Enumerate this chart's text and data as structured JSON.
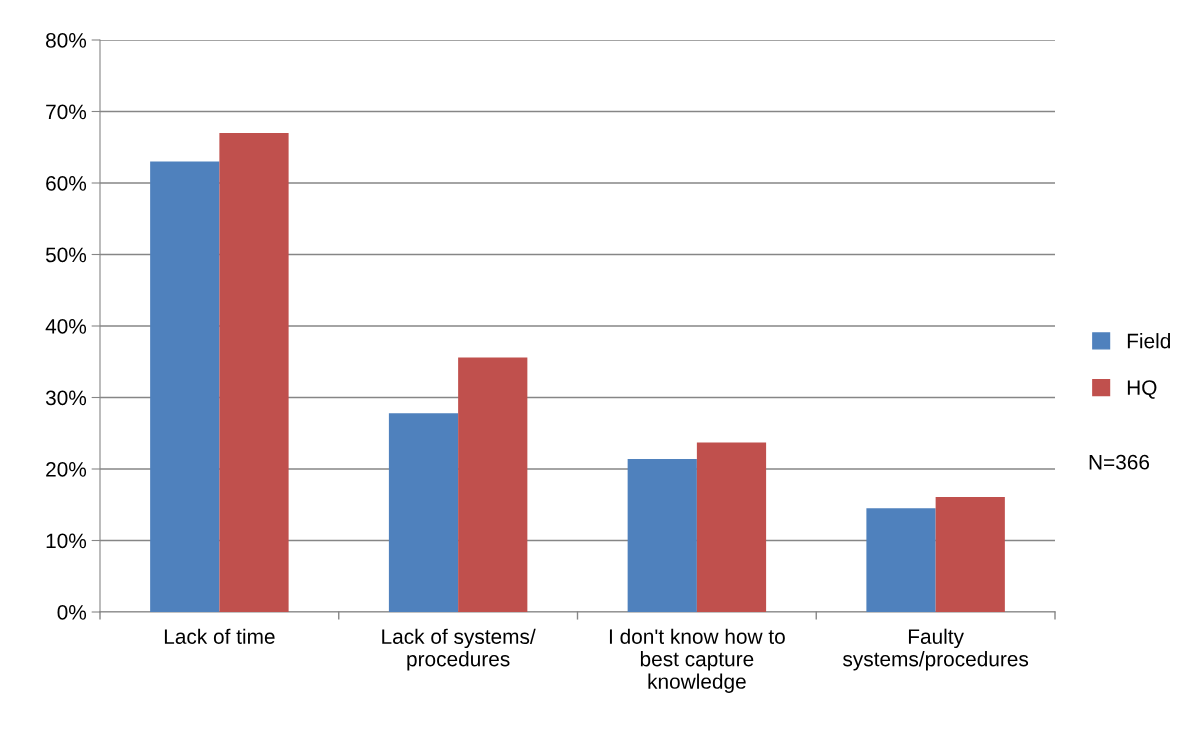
{
  "chart_data": {
    "type": "bar",
    "categories": [
      "Lack of time",
      "Lack of systems/\nprocedures",
      "I don't know how to\nbest capture\nknowledge",
      "Faulty\nsystems/procedures"
    ],
    "series": [
      {
        "name": "Field",
        "color": "#4f81bd",
        "values": [
          63,
          27.8,
          21.4,
          14.5
        ]
      },
      {
        "name": "HQ",
        "color": "#c0504d",
        "values": [
          67,
          35.6,
          23.7,
          16.1
        ]
      }
    ],
    "ylim": [
      0,
      80
    ],
    "yticks": [
      {
        "value": 0,
        "label": "0%"
      },
      {
        "value": 10,
        "label": "10%"
      },
      {
        "value": 20,
        "label": "20%"
      },
      {
        "value": 30,
        "label": "30%"
      },
      {
        "value": 40,
        "label": "40%"
      },
      {
        "value": 50,
        "label": "50%"
      },
      {
        "value": 60,
        "label": "60%"
      },
      {
        "value": 70,
        "label": "70%"
      },
      {
        "value": 80,
        "label": "80%"
      }
    ],
    "grid": "y",
    "legend": "right",
    "annotations": [
      "N=366"
    ]
  }
}
